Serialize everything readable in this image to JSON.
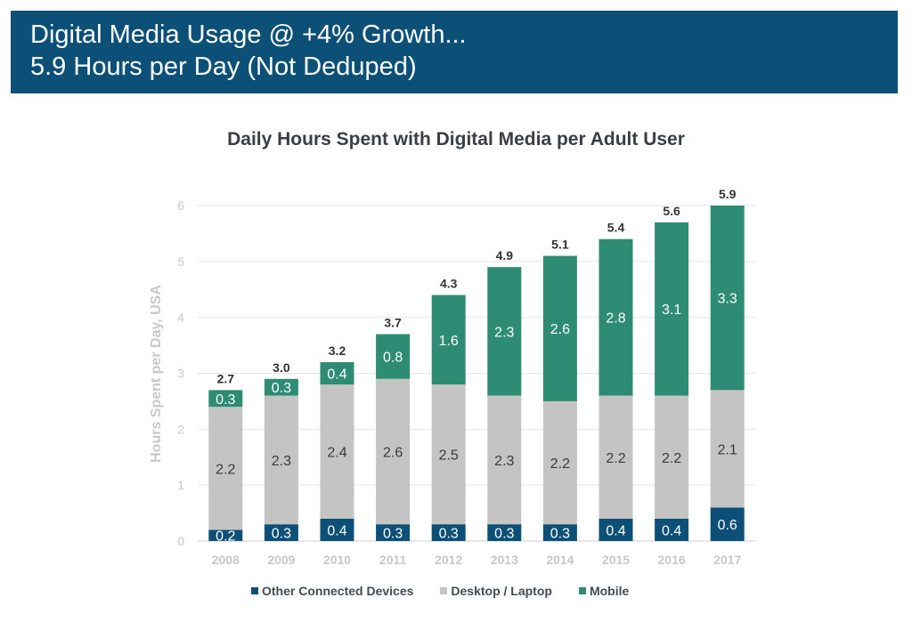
{
  "header": {
    "line1": "Digital Media Usage @ +4% Growth...",
    "line2": "5.9 Hours per Day (Not Deduped)"
  },
  "chart_data": {
    "type": "bar",
    "stacked": true,
    "title": "Daily Hours Spent with Digital Media per Adult User",
    "xlabel": "",
    "ylabel": "Hours Spent per Day, USA",
    "ylim": [
      0,
      6
    ],
    "yticks": [
      "0",
      "1",
      "2",
      "3",
      "4",
      "5",
      "6"
    ],
    "grid": true,
    "legend": "bottom",
    "categories": [
      "2008",
      "2009",
      "2010",
      "2011",
      "2012",
      "2013",
      "2014",
      "2015",
      "2016",
      "2017"
    ],
    "series": [
      {
        "name": "Other Connected Devices",
        "color": "#0c5077",
        "values": [
          0.2,
          0.3,
          0.4,
          0.3,
          0.3,
          0.3,
          0.3,
          0.4,
          0.4,
          0.6
        ]
      },
      {
        "name": "Desktop / Laptop",
        "color": "#c4c4c4",
        "values": [
          2.2,
          2.3,
          2.4,
          2.6,
          2.5,
          2.3,
          2.2,
          2.2,
          2.2,
          2.1
        ]
      },
      {
        "name": "Mobile",
        "color": "#2e8c74",
        "values": [
          0.3,
          0.3,
          0.4,
          0.8,
          1.6,
          2.3,
          2.6,
          2.8,
          3.1,
          3.3
        ]
      }
    ],
    "totals": [
      "2.7",
      "3.0",
      "3.2",
      "3.7",
      "4.3",
      "4.9",
      "5.1",
      "5.4",
      "5.6",
      "5.9"
    ]
  }
}
